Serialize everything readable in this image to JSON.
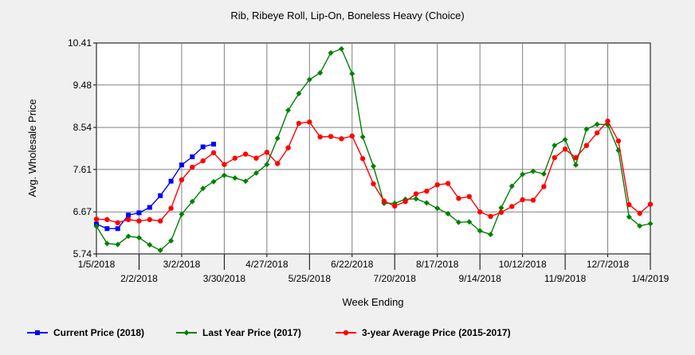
{
  "chart_data": {
    "type": "line",
    "title": "Rib, Ribeye Roll, Lip-On, Boneless Heavy (Choice)",
    "xlabel": "Week Ending",
    "ylabel": "Avg. Wholesale Price",
    "ylim": [
      5.74,
      10.41
    ],
    "y_ticks": [
      "5.74",
      "6.67",
      "7.61",
      "8.54",
      "9.48",
      "10.41"
    ],
    "x_tick_labels_row1": [
      "1/5/2018",
      "3/2/2018",
      "4/27/2018",
      "6/22/2018",
      "8/17/2018",
      "10/12/2018",
      "12/7/2018"
    ],
    "x_tick_labels_row2": [
      "2/2/2018",
      "3/30/2018",
      "5/25/2018",
      "7/20/2018",
      "9/14/2018",
      "11/9/2018",
      "1/4/2019"
    ],
    "grid": true,
    "legend_position": "bottom",
    "series": [
      {
        "name": "Current Price (2018)",
        "color": "#0000ff",
        "values": [
          6.4,
          6.3,
          6.3,
          6.6,
          6.65,
          6.77,
          7.03,
          7.35,
          7.71,
          7.89,
          8.11,
          8.17
        ]
      },
      {
        "name": "Last Year Price (2017)",
        "color": "#008000",
        "values": [
          6.35,
          5.97,
          5.95,
          6.13,
          6.1,
          5.94,
          5.82,
          6.03,
          6.62,
          6.9,
          7.19,
          7.34,
          7.48,
          7.42,
          7.35,
          7.53,
          7.72,
          8.3,
          8.92,
          9.29,
          9.6,
          9.75,
          10.19,
          10.28,
          9.73,
          8.33,
          7.68,
          6.86,
          6.86,
          6.95,
          6.96,
          6.87,
          6.75,
          6.63,
          6.44,
          6.45,
          6.25,
          6.17,
          6.76,
          7.24,
          7.5,
          7.57,
          7.51,
          8.14,
          8.27,
          7.71,
          8.5,
          8.61,
          8.6,
          8.03,
          6.56,
          6.36,
          6.41
        ]
      },
      {
        "name": "3-year Average Price (2015-2017)",
        "color": "#ff0000",
        "values": [
          6.51,
          6.5,
          6.43,
          6.5,
          6.47,
          6.5,
          6.47,
          6.75,
          7.38,
          7.66,
          7.8,
          7.98,
          7.72,
          7.86,
          7.95,
          7.86,
          7.99,
          7.74,
          8.09,
          8.63,
          8.66,
          8.33,
          8.34,
          8.29,
          8.35,
          7.85,
          7.29,
          6.91,
          6.8,
          6.9,
          7.07,
          7.13,
          7.27,
          7.3,
          6.97,
          7.01,
          6.67,
          6.57,
          6.66,
          6.79,
          6.94,
          6.93,
          7.23,
          7.87,
          8.06,
          7.87,
          8.14,
          8.42,
          8.68,
          8.24,
          6.83,
          6.64,
          6.84
        ]
      }
    ]
  }
}
